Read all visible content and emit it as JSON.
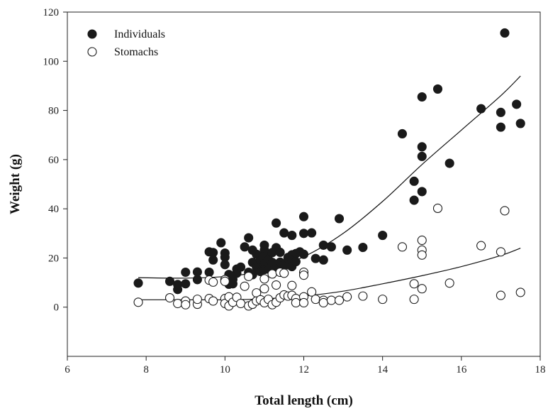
{
  "chart_data": {
    "type": "scatter",
    "xlabel": "Total length (cm)",
    "ylabel": "Weight (g)",
    "xlim": [
      6,
      18
    ],
    "ylim": [
      -20,
      120
    ],
    "xticks": [
      6,
      8,
      10,
      12,
      14,
      16,
      18
    ],
    "yticks": [
      0,
      20,
      40,
      60,
      80,
      100,
      120
    ],
    "grid": false,
    "legend_position": "top-left",
    "series": [
      {
        "name": "Individuals",
        "marker": "filled-circle",
        "color": "#1a1a1a",
        "points": [
          [
            7.8,
            9.8
          ],
          [
            8.6,
            10.5
          ],
          [
            8.8,
            7.2
          ],
          [
            8.8,
            9.2
          ],
          [
            9.0,
            9.5
          ],
          [
            9.0,
            14.2
          ],
          [
            9.3,
            11.2
          ],
          [
            9.3,
            14.3
          ],
          [
            9.6,
            14.2
          ],
          [
            9.6,
            22.5
          ],
          [
            9.7,
            22.2
          ],
          [
            9.7,
            19.2
          ],
          [
            9.9,
            26.2
          ],
          [
            10.0,
            22.0
          ],
          [
            10.0,
            20.3
          ],
          [
            10.0,
            17.3
          ],
          [
            10.1,
            13.3
          ],
          [
            10.1,
            9.3
          ],
          [
            10.2,
            9.5
          ],
          [
            10.2,
            11.3
          ],
          [
            10.3,
            13.8
          ],
          [
            10.3,
            15.5
          ],
          [
            10.4,
            16.3
          ],
          [
            10.5,
            24.5
          ],
          [
            10.6,
            28.2
          ],
          [
            10.6,
            14.2
          ],
          [
            10.7,
            23.2
          ],
          [
            10.7,
            18.2
          ],
          [
            10.7,
            13.2
          ],
          [
            10.8,
            21.5
          ],
          [
            10.8,
            16.2
          ],
          [
            10.9,
            19.2
          ],
          [
            10.9,
            14.5
          ],
          [
            11.0,
            25.2
          ],
          [
            11.0,
            23.2
          ],
          [
            11.0,
            20.8
          ],
          [
            11.0,
            17.5
          ],
          [
            11.0,
            15.3
          ],
          [
            11.1,
            19.5
          ],
          [
            11.1,
            15.5
          ],
          [
            11.2,
            22.2
          ],
          [
            11.2,
            18.2
          ],
          [
            11.3,
            34.2
          ],
          [
            11.3,
            24.2
          ],
          [
            11.3,
            16.2
          ],
          [
            11.4,
            22.3
          ],
          [
            11.4,
            18.3
          ],
          [
            11.5,
            30.2
          ],
          [
            11.5,
            17.3
          ],
          [
            11.6,
            20.2
          ],
          [
            11.6,
            17.2
          ],
          [
            11.7,
            29.2
          ],
          [
            11.7,
            21.3
          ],
          [
            11.7,
            19.2
          ],
          [
            11.7,
            16.5
          ],
          [
            11.8,
            21.8
          ],
          [
            11.8,
            18.5
          ],
          [
            11.9,
            22.5
          ],
          [
            12.0,
            36.8
          ],
          [
            12.0,
            30.0
          ],
          [
            12.0,
            21.5
          ],
          [
            12.2,
            30.2
          ],
          [
            12.3,
            19.8
          ],
          [
            12.5,
            25.2
          ],
          [
            12.5,
            19.2
          ],
          [
            12.7,
            24.5
          ],
          [
            12.9,
            36.0
          ],
          [
            13.1,
            23.2
          ],
          [
            13.5,
            24.3
          ],
          [
            14.0,
            29.2
          ],
          [
            14.5,
            70.5
          ],
          [
            14.8,
            51.2
          ],
          [
            14.8,
            43.5
          ],
          [
            15.0,
            85.5
          ],
          [
            15.0,
            65.2
          ],
          [
            15.0,
            61.3
          ],
          [
            15.0,
            47.0
          ],
          [
            15.4,
            88.7
          ],
          [
            15.7,
            58.5
          ],
          [
            16.5,
            80.7
          ],
          [
            17.0,
            79.2
          ],
          [
            17.0,
            73.2
          ],
          [
            17.1,
            111.5
          ],
          [
            17.4,
            82.5
          ],
          [
            17.5,
            74.7
          ]
        ]
      },
      {
        "name": "Stomachs",
        "marker": "open-circle",
        "color": "#1a1a1a",
        "points": [
          [
            7.8,
            2.0
          ],
          [
            8.6,
            3.8
          ],
          [
            8.8,
            1.5
          ],
          [
            9.0,
            2.5
          ],
          [
            9.0,
            1.0
          ],
          [
            9.3,
            1.2
          ],
          [
            9.3,
            3.2
          ],
          [
            9.6,
            3.5
          ],
          [
            9.6,
            11.0
          ],
          [
            9.7,
            10.2
          ],
          [
            9.7,
            2.5
          ],
          [
            10.0,
            11.2
          ],
          [
            10.0,
            10.5
          ],
          [
            10.0,
            3.5
          ],
          [
            10.0,
            1.5
          ],
          [
            10.1,
            0.5
          ],
          [
            10.1,
            4.2
          ],
          [
            10.2,
            2.0
          ],
          [
            10.3,
            4.0
          ],
          [
            10.4,
            1.5
          ],
          [
            10.5,
            8.5
          ],
          [
            10.6,
            12.5
          ],
          [
            10.6,
            0.5
          ],
          [
            10.7,
            1.2
          ],
          [
            10.8,
            5.8
          ],
          [
            10.8,
            2.5
          ],
          [
            10.9,
            3.0
          ],
          [
            11.0,
            11.5
          ],
          [
            11.0,
            7.5
          ],
          [
            11.0,
            1.8
          ],
          [
            11.1,
            3.2
          ],
          [
            11.2,
            13.5
          ],
          [
            11.2,
            1.0
          ],
          [
            11.3,
            9.0
          ],
          [
            11.3,
            2.0
          ],
          [
            11.4,
            14.2
          ],
          [
            11.4,
            3.8
          ],
          [
            11.5,
            13.8
          ],
          [
            11.5,
            5.0
          ],
          [
            11.6,
            4.5
          ],
          [
            11.7,
            8.8
          ],
          [
            11.7,
            4.8
          ],
          [
            11.8,
            3.5
          ],
          [
            11.8,
            1.8
          ],
          [
            12.0,
            14.2
          ],
          [
            12.0,
            13.0
          ],
          [
            12.0,
            4.2
          ],
          [
            12.0,
            1.8
          ],
          [
            12.2,
            6.2
          ],
          [
            12.3,
            3.2
          ],
          [
            12.5,
            2.8
          ],
          [
            12.5,
            1.8
          ],
          [
            12.7,
            2.8
          ],
          [
            12.9,
            2.8
          ],
          [
            13.1,
            4.2
          ],
          [
            13.5,
            4.5
          ],
          [
            14.0,
            3.2
          ],
          [
            14.5,
            24.5
          ],
          [
            14.8,
            9.5
          ],
          [
            14.8,
            3.2
          ],
          [
            15.0,
            27.2
          ],
          [
            15.0,
            23.2
          ],
          [
            15.0,
            21.2
          ],
          [
            15.0,
            7.5
          ],
          [
            15.4,
            40.2
          ],
          [
            15.7,
            9.8
          ],
          [
            16.5,
            25.0
          ],
          [
            17.0,
            22.5
          ],
          [
            17.0,
            4.8
          ],
          [
            17.1,
            39.2
          ],
          [
            17.5,
            6.0
          ]
        ]
      }
    ],
    "fit_curves": [
      {
        "series": "Individuals",
        "x_range": [
          7.8,
          17.5
        ],
        "y_points": [
          [
            7.8,
            12.0
          ],
          [
            9.0,
            11.8
          ],
          [
            10.0,
            12.5
          ],
          [
            11.0,
            14.8
          ],
          [
            12.0,
            20.5
          ],
          [
            13.0,
            30.0
          ],
          [
            14.0,
            43.0
          ],
          [
            15.0,
            58.0
          ],
          [
            16.0,
            72.0
          ],
          [
            17.0,
            86.0
          ],
          [
            17.5,
            94.0
          ]
        ]
      },
      {
        "series": "Stomachs",
        "x_range": [
          7.8,
          17.5
        ],
        "y_points": [
          [
            7.8,
            3.0
          ],
          [
            9.0,
            3.0
          ],
          [
            10.0,
            3.0
          ],
          [
            11.0,
            3.4
          ],
          [
            12.0,
            4.5
          ],
          [
            13.0,
            6.5
          ],
          [
            14.0,
            9.5
          ],
          [
            15.0,
            12.8
          ],
          [
            16.0,
            16.5
          ],
          [
            17.0,
            21.0
          ],
          [
            17.5,
            24.0
          ]
        ]
      }
    ]
  }
}
